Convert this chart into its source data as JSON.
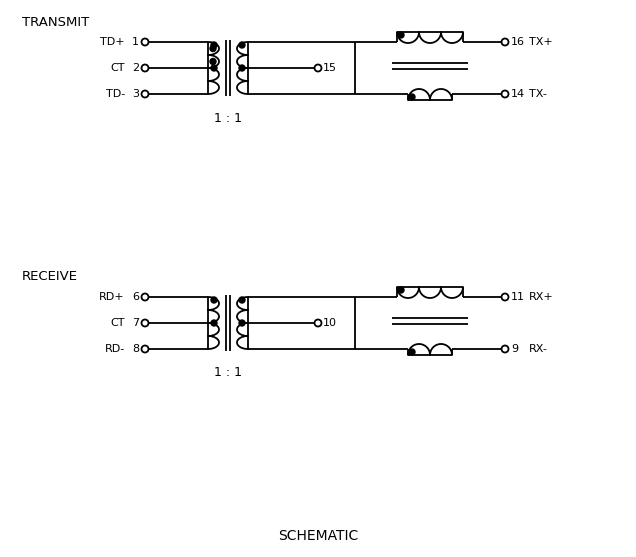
{
  "background": "#ffffff",
  "line_color": "#000000",
  "line_width": 1.3,
  "title": "SCHEMATIC",
  "transmit_label": "TRANSMIT",
  "receive_label": "RECEIVE",
  "ratio_label": "1 : 1",
  "figsize": [
    6.36,
    5.57
  ],
  "dpi": 100
}
